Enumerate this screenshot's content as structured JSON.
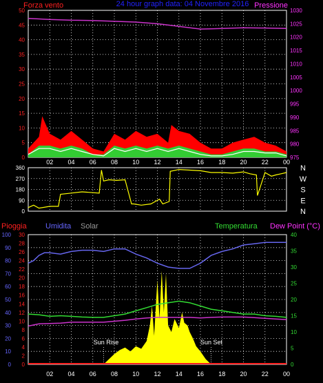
{
  "chart_data": [
    {
      "type": "line",
      "title": "24 hour graph data: 04 Novembre 2016",
      "left_axis_label": "Forza vento",
      "right_axis_label": "Pressione",
      "left_ylim": [
        0,
        50
      ],
      "left_ticks": [
        "0",
        "5",
        "10",
        "15",
        "20",
        "25",
        "30",
        "35",
        "40",
        "45",
        "50"
      ],
      "right_ylim": [
        975,
        1030
      ],
      "right_ticks": [
        "975",
        "980",
        "985",
        "990",
        "995",
        "1000",
        "1005",
        "1010",
        "1015",
        "1020",
        "1025",
        "1030"
      ],
      "x_ticks": [
        "02",
        "04",
        "06",
        "08",
        "10",
        "12",
        "14",
        "16",
        "18",
        "20",
        "22",
        "00"
      ],
      "grid": true,
      "colors": {
        "left": "#ff2020",
        "right": "#ff33ff",
        "title": "#2222ff",
        "gust": "#ff0000",
        "speed": "#33cc33",
        "avg": "#ffffff",
        "pressure": "#cc33cc"
      },
      "series": [
        {
          "role": "pressure",
          "axis": "right",
          "hours": [
            0,
            2,
            4,
            6,
            8,
            10,
            12,
            14,
            16,
            17,
            18,
            20,
            22,
            24
          ],
          "values": [
            1027,
            1026.6,
            1026.3,
            1026.2,
            1025.9,
            1025.6,
            1025.0,
            1024.0,
            1023.0,
            1023.1,
            1023.2,
            1023.5,
            1023.4,
            1023.2
          ]
        },
        {
          "role": "gust",
          "axis": "left",
          "hours": [
            0,
            1,
            1.3,
            2,
            3,
            4,
            5,
            6,
            7,
            8,
            9,
            10,
            11,
            12,
            13,
            13.3,
            14,
            15,
            16,
            17,
            18,
            19,
            20,
            21,
            22,
            23,
            24
          ],
          "values": [
            3,
            7,
            14,
            8,
            6,
            9,
            6,
            3,
            2,
            8,
            6,
            9,
            7,
            8,
            5,
            11,
            9,
            8,
            5,
            3,
            3,
            5,
            6,
            7,
            5,
            4,
            2
          ]
        },
        {
          "role": "speed",
          "axis": "left",
          "hours": [
            0,
            1,
            2,
            3,
            4,
            5,
            6,
            7,
            8,
            9,
            10,
            11,
            12,
            13,
            14,
            15,
            16,
            17,
            18,
            19,
            20,
            21,
            22,
            23,
            24
          ],
          "values": [
            1,
            4,
            4,
            3,
            4,
            3,
            1,
            1,
            4,
            3,
            4,
            3,
            4,
            3,
            4,
            3,
            2,
            1,
            1,
            2,
            3,
            3,
            2,
            2,
            1
          ]
        },
        {
          "role": "average",
          "axis": "left",
          "hours": [
            0,
            1,
            2,
            3,
            4,
            5,
            6,
            7,
            8,
            9,
            10,
            11,
            12,
            13,
            14,
            15,
            16,
            17,
            18,
            19,
            20,
            21,
            22,
            23,
            24
          ],
          "values": [
            1,
            3,
            3,
            2,
            3,
            2,
            1,
            0.5,
            3,
            2,
            3,
            2,
            3,
            2,
            3,
            2,
            1,
            0.5,
            0.5,
            1,
            2,
            2,
            1.5,
            1.5,
            0.5
          ]
        }
      ]
    },
    {
      "type": "line",
      "left_ylim": [
        0,
        360
      ],
      "left_ticks": [
        "0",
        "90",
        "180",
        "270",
        "360"
      ],
      "right_labels": [
        "N",
        "W",
        "S",
        "E",
        "N"
      ],
      "x_ticks": [
        "02",
        "04",
        "06",
        "08",
        "10",
        "12",
        "14",
        "16",
        "18",
        "20",
        "22",
        "00"
      ],
      "grid": true,
      "colors": {
        "line": "#ffff00"
      },
      "series": [
        {
          "role": "wind-direction",
          "hours": [
            0,
            0.5,
            1,
            2,
            2.8,
            3.0,
            4,
            5,
            6.6,
            6.8,
            7,
            7.5,
            8.2,
            9,
            9.6,
            9.8,
            10.5,
            11.4,
            12.2,
            12.5,
            13.1,
            13.2,
            14,
            15,
            16,
            17,
            18,
            19,
            20,
            20.6,
            21.2,
            21.3,
            22,
            22.6,
            23,
            23.5,
            24
          ],
          "values": [
            30,
            50,
            25,
            40,
            40,
            140,
            150,
            160,
            150,
            340,
            250,
            260,
            255,
            260,
            60,
            60,
            50,
            60,
            100,
            60,
            80,
            330,
            345,
            340,
            335,
            320,
            320,
            315,
            325,
            310,
            300,
            130,
            320,
            290,
            300,
            310,
            320
          ]
        }
      ]
    },
    {
      "type": "line",
      "labels": {
        "rain": "Pioggia",
        "humidity": "Umidita",
        "solar": "Solar",
        "temperature": "Temperatura",
        "dewpoint": "Dew Point (°C)"
      },
      "humidity_ylim": [
        0,
        100
      ],
      "humidity_ticks": [
        "0",
        "10",
        "20",
        "30",
        "40",
        "50",
        "60",
        "70",
        "80",
        "90",
        "100"
      ],
      "rain_ylim": [
        0,
        30
      ],
      "rain_ticks": [
        "0",
        "2",
        "4",
        "6",
        "8",
        "10",
        "12",
        "14",
        "16",
        "18",
        "20",
        "22",
        "24",
        "26",
        "28",
        "30"
      ],
      "temp_ylim": [
        0,
        40
      ],
      "temp_ticks": [
        "0",
        "5",
        "10",
        "15",
        "20",
        "25",
        "30",
        "35",
        "40"
      ],
      "x_ticks": [
        "02",
        "04",
        "06",
        "08",
        "10",
        "12",
        "14",
        "16",
        "18",
        "20",
        "22",
        "00"
      ],
      "annotations": {
        "sunrise": "Sun Rise",
        "sunset": "Sun Set"
      },
      "sunrise_hour": 7,
      "sunset_hour": 17,
      "grid": true,
      "colors": {
        "rain": "#ff2020",
        "humidity": "#6666ff",
        "solar_label": "#999999",
        "temperature": "#33dd33",
        "dewpoint": "#ff33ff",
        "solar": "#ffff00",
        "humidity_line": "#6666ee",
        "temp_line": "#33dd33",
        "dew_line": "#cc33cc"
      },
      "series": [
        {
          "role": "humidity",
          "axis": "left-humidity",
          "hours": [
            0,
            0.5,
            1,
            1.5,
            2,
            3,
            4,
            5,
            6,
            7,
            8,
            9,
            10,
            11,
            12,
            13,
            14,
            15,
            16,
            17,
            18,
            19,
            20,
            21,
            22,
            23,
            24
          ],
          "values": [
            78,
            80,
            84,
            86,
            86,
            85,
            87,
            88,
            88,
            87,
            89,
            89,
            85,
            82,
            78,
            75,
            74,
            74,
            78,
            84,
            87,
            89,
            92,
            93,
            94,
            94,
            94
          ]
        },
        {
          "role": "temperature",
          "axis": "right-temp",
          "hours": [
            0,
            1,
            2,
            3,
            4,
            5,
            6,
            7,
            8,
            9,
            10,
            11,
            12,
            13,
            14,
            15,
            16,
            17,
            18,
            19,
            20,
            21,
            22,
            23,
            24
          ],
          "values": [
            15.5,
            15.3,
            14.8,
            15.0,
            14.8,
            14.6,
            14.5,
            14.5,
            15.0,
            15.5,
            16.5,
            17.5,
            18.5,
            19.0,
            19.5,
            19.0,
            18.0,
            17.0,
            16.5,
            16.0,
            15.5,
            15.5,
            15.0,
            14.8,
            14.5
          ]
        },
        {
          "role": "dewpoint",
          "axis": "right-temp",
          "hours": [
            0,
            1,
            2,
            3,
            4,
            5,
            6,
            7,
            8,
            9,
            10,
            11,
            12,
            13,
            14,
            15,
            16,
            17,
            18,
            19,
            20,
            21,
            22,
            23,
            24
          ],
          "values": [
            11.8,
            12.5,
            12.6,
            12.7,
            13.0,
            13.0,
            13.0,
            13.0,
            13.3,
            13.6,
            14.0,
            14.3,
            14.5,
            14.5,
            14.5,
            14.5,
            14.3,
            14.5,
            14.6,
            14.6,
            14.6,
            14.4,
            14.2,
            14.0,
            13.8
          ]
        },
        {
          "role": "solar",
          "axis": "left-humidity",
          "hours": [
            7.0,
            7.5,
            8.0,
            8.5,
            9.0,
            9.5,
            10.0,
            10.5,
            11.0,
            11.3,
            11.5,
            11.7,
            12.0,
            12.2,
            12.4,
            12.6,
            12.8,
            13.0,
            13.3,
            13.6,
            14.0,
            14.3,
            14.5,
            14.8,
            15.0,
            15.3,
            15.6,
            16.0,
            16.5,
            17.0
          ],
          "values": [
            0,
            4,
            8,
            11,
            13,
            10,
            14,
            12,
            18,
            30,
            45,
            22,
            65,
            35,
            72,
            40,
            70,
            30,
            25,
            35,
            28,
            40,
            32,
            30,
            25,
            20,
            14,
            10,
            4,
            0
          ]
        },
        {
          "role": "rain",
          "axis": "left-rain",
          "hours": [
            0,
            24
          ],
          "values": [
            0,
            0
          ]
        }
      ]
    }
  ]
}
